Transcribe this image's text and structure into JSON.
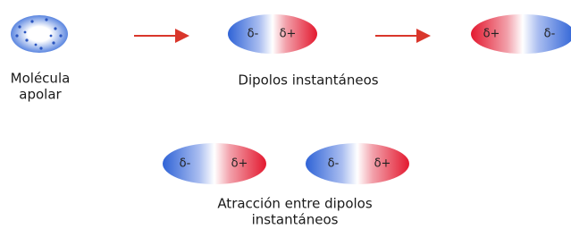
{
  "molecule": {
    "label_lines": [
      "Molécula",
      "apolar"
    ]
  },
  "dipoles": [
    {
      "left": "δ-",
      "right": "δ+"
    },
    {
      "left": "δ+",
      "right": "δ-"
    },
    {
      "left": "δ-",
      "right": "δ+"
    },
    {
      "left": "δ-",
      "right": "δ+"
    }
  ],
  "captions": {
    "instantaneous": "Dipolos instantáneos",
    "attraction_lines": [
      "Atracción entre dipolos",
      "instantáneos"
    ]
  }
}
